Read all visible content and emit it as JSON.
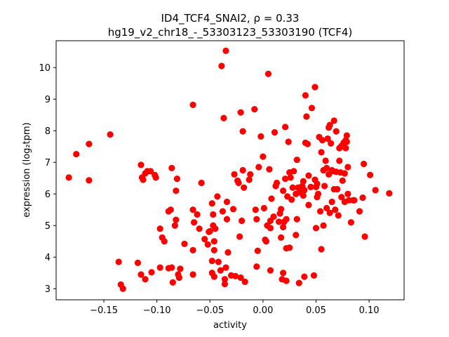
{
  "chart_data": {
    "type": "scatter",
    "title_line1": "ID4_TCF4_SNAI2, ρ = 0.33",
    "title_line2": "hg19_v2_chr18_-_53303123_53303190 (TCF4)",
    "xlabel": "activity",
    "ylabel": "expression (log₂tpm)",
    "xlim": [
      -0.195,
      0.133
    ],
    "ylim": [
      2.65,
      10.85
    ],
    "xticks": [
      -0.15,
      -0.1,
      -0.05,
      0.0,
      0.05,
      0.1
    ],
    "xtick_labels": [
      "−0.15",
      "−0.10",
      "−0.05",
      "0.00",
      "0.05",
      "0.10"
    ],
    "yticks": [
      3,
      4,
      5,
      6,
      7,
      8,
      9,
      10
    ],
    "ytick_labels": [
      "3",
      "4",
      "5",
      "6",
      "7",
      "8",
      "9",
      "10"
    ],
    "marker_color": "#ff0000",
    "grid": false,
    "points": [
      [
        -0.183,
        6.52
      ],
      [
        -0.176,
        7.26
      ],
      [
        -0.164,
        7.58
      ],
      [
        -0.164,
        6.43
      ],
      [
        -0.144,
        7.88
      ],
      [
        -0.136,
        3.85
      ],
      [
        -0.134,
        3.13
      ],
      [
        -0.132,
        3.0
      ],
      [
        -0.118,
        3.82
      ],
      [
        -0.115,
        6.92
      ],
      [
        -0.115,
        3.45
      ],
      [
        -0.114,
        6.52
      ],
      [
        -0.113,
        6.45
      ],
      [
        -0.111,
        6.65
      ],
      [
        -0.111,
        3.3
      ],
      [
        -0.109,
        6.72
      ],
      [
        -0.106,
        6.72
      ],
      [
        -0.105,
        3.52
      ],
      [
        -0.102,
        6.6
      ],
      [
        -0.101,
        6.52
      ],
      [
        -0.097,
        4.9
      ],
      [
        -0.097,
        3.67
      ],
      [
        -0.095,
        4.62
      ],
      [
        -0.093,
        4.5
      ],
      [
        -0.089,
        5.45
      ],
      [
        -0.089,
        3.65
      ],
      [
        -0.087,
        5.5
      ],
      [
        -0.086,
        3.67
      ],
      [
        -0.086,
        6.82
      ],
      [
        -0.085,
        3.2
      ],
      [
        -0.083,
        5.0
      ],
      [
        -0.082,
        5.18
      ],
      [
        -0.082,
        6.1
      ],
      [
        -0.081,
        6.48
      ],
      [
        -0.08,
        3.45
      ],
      [
        -0.079,
        3.35
      ],
      [
        -0.078,
        3.63
      ],
      [
        -0.074,
        4.42
      ],
      [
        -0.066,
        8.82
      ],
      [
        -0.066,
        5.5
      ],
      [
        -0.066,
        4.22
      ],
      [
        -0.066,
        3.45
      ],
      [
        -0.065,
        5.1
      ],
      [
        -0.062,
        5.35
      ],
      [
        -0.06,
        4.9
      ],
      [
        -0.058,
        6.35
      ],
      [
        -0.055,
        4.57
      ],
      [
        -0.052,
        4.4
      ],
      [
        -0.051,
        4.8
      ],
      [
        -0.05,
        4.82
      ],
      [
        -0.048,
        5.7
      ],
      [
        -0.048,
        3.88
      ],
      [
        -0.048,
        3.5
      ],
      [
        -0.047,
        5.35
      ],
      [
        -0.047,
        5.0
      ],
      [
        -0.046,
        4.5
      ],
      [
        -0.046,
        4.22
      ],
      [
        -0.046,
        3.38
      ],
      [
        -0.045,
        4.9
      ],
      [
        -0.043,
        5.92
      ],
      [
        -0.042,
        3.85
      ],
      [
        -0.04,
        3.58
      ],
      [
        -0.039,
        10.05
      ],
      [
        -0.038,
        5.45
      ],
      [
        -0.037,
        8.4
      ],
      [
        -0.036,
        3.3
      ],
      [
        -0.036,
        3.15
      ],
      [
        -0.035,
        10.53
      ],
      [
        -0.035,
        3.67
      ],
      [
        -0.034,
        5.75
      ],
      [
        -0.034,
        5.2
      ],
      [
        -0.033,
        4.15
      ],
      [
        -0.03,
        3.42
      ],
      [
        -0.028,
        5.52
      ],
      [
        -0.027,
        6.62
      ],
      [
        -0.026,
        3.4
      ],
      [
        -0.024,
        6.42
      ],
      [
        -0.023,
        6.35
      ],
      [
        -0.022,
        4.65
      ],
      [
        -0.021,
        8.58
      ],
      [
        -0.021,
        3.35
      ],
      [
        -0.02,
        5.15
      ],
      [
        -0.019,
        7.98
      ],
      [
        -0.019,
        6.75
      ],
      [
        -0.018,
        6.2
      ],
      [
        -0.017,
        3.22
      ],
      [
        -0.013,
        6.45
      ],
      [
        -0.012,
        6.62
      ],
      [
        -0.008,
        8.68
      ],
      [
        -0.007,
        5.5
      ],
      [
        -0.006,
        5.2
      ],
      [
        -0.006,
        3.7
      ],
      [
        -0.005,
        4.2
      ],
      [
        -0.004,
        6.85
      ],
      [
        -0.002,
        7.82
      ],
      [
        0.0,
        7.18
      ],
      [
        0.001,
        5.55
      ],
      [
        0.002,
        4.55
      ],
      [
        0.003,
        4.5
      ],
      [
        0.004,
        5.0
      ],
      [
        0.005,
        9.8
      ],
      [
        0.006,
        6.78
      ],
      [
        0.007,
        5.15
      ],
      [
        0.007,
        4.92
      ],
      [
        0.007,
        3.58
      ],
      [
        0.008,
        5.85
      ],
      [
        0.01,
        5.28
      ],
      [
        0.011,
        7.95
      ],
      [
        0.012,
        6.25
      ],
      [
        0.013,
        6.35
      ],
      [
        0.015,
        5.12
      ],
      [
        0.016,
        5.38
      ],
      [
        0.017,
        5.52
      ],
      [
        0.017,
        4.62
      ],
      [
        0.018,
        3.3
      ],
      [
        0.019,
        3.5
      ],
      [
        0.019,
        6.1
      ],
      [
        0.019,
        4.95
      ],
      [
        0.02,
        5.12
      ],
      [
        0.021,
        8.12
      ],
      [
        0.021,
        6.48
      ],
      [
        0.022,
        4.28
      ],
      [
        0.022,
        3.25
      ],
      [
        0.022,
        5.2
      ],
      [
        0.023,
        5.92
      ],
      [
        0.024,
        7.65
      ],
      [
        0.025,
        6.68
      ],
      [
        0.025,
        4.3
      ],
      [
        0.026,
        6.52
      ],
      [
        0.027,
        5.82
      ],
      [
        0.028,
        6.2
      ],
      [
        0.029,
        6.72
      ],
      [
        0.031,
        6.0
      ],
      [
        0.031,
        4.7
      ],
      [
        0.032,
        7.08
      ],
      [
        0.032,
        5.2
      ],
      [
        0.033,
        6.2
      ],
      [
        0.034,
        3.18
      ],
      [
        0.035,
        6.05
      ],
      [
        0.036,
        6.1
      ],
      [
        0.037,
        6.25
      ],
      [
        0.038,
        6.4
      ],
      [
        0.038,
        5.95
      ],
      [
        0.039,
        3.38
      ],
      [
        0.039,
        6.12
      ],
      [
        0.04,
        9.12
      ],
      [
        0.04,
        7.62
      ],
      [
        0.041,
        8.45
      ],
      [
        0.042,
        7.58
      ],
      [
        0.043,
        6.58
      ],
      [
        0.043,
        5.65
      ],
      [
        0.045,
        6.22
      ],
      [
        0.046,
        8.72
      ],
      [
        0.048,
        3.42
      ],
      [
        0.049,
        9.38
      ],
      [
        0.049,
        6.45
      ],
      [
        0.05,
        4.92
      ],
      [
        0.05,
        6.22
      ],
      [
        0.051,
        6.32
      ],
      [
        0.051,
        5.9
      ],
      [
        0.052,
        6.0
      ],
      [
        0.053,
        7.8
      ],
      [
        0.054,
        5.45
      ],
      [
        0.055,
        4.25
      ],
      [
        0.055,
        7.32
      ],
      [
        0.056,
        7.7
      ],
      [
        0.057,
        6.75
      ],
      [
        0.057,
        5.0
      ],
      [
        0.058,
        6.25
      ],
      [
        0.059,
        7.05
      ],
      [
        0.06,
        5.55
      ],
      [
        0.06,
        6.82
      ],
      [
        0.061,
        7.75
      ],
      [
        0.062,
        8.1
      ],
      [
        0.062,
        6.62
      ],
      [
        0.063,
        8.18
      ],
      [
        0.063,
        5.4
      ],
      [
        0.064,
        7.6
      ],
      [
        0.065,
        6.75
      ],
      [
        0.065,
        5.75
      ],
      [
        0.066,
        6.72
      ],
      [
        0.067,
        8.32
      ],
      [
        0.067,
        6.15
      ],
      [
        0.068,
        5.5
      ],
      [
        0.069,
        7.98
      ],
      [
        0.069,
        6.7
      ],
      [
        0.07,
        6.15
      ],
      [
        0.071,
        5.32
      ],
      [
        0.072,
        7.45
      ],
      [
        0.072,
        7.05
      ],
      [
        0.073,
        6.68
      ],
      [
        0.074,
        5.9
      ],
      [
        0.074,
        7.52
      ],
      [
        0.075,
        6.42
      ],
      [
        0.076,
        7.62
      ],
      [
        0.077,
        6.65
      ],
      [
        0.077,
        5.75
      ],
      [
        0.078,
        7.7
      ],
      [
        0.078,
        7.45
      ],
      [
        0.079,
        7.85
      ],
      [
        0.079,
        7.65
      ],
      [
        0.08,
        6.85
      ],
      [
        0.08,
        6.0
      ],
      [
        0.081,
        5.8
      ],
      [
        0.083,
        5.1
      ],
      [
        0.085,
        5.8
      ],
      [
        0.086,
        5.8
      ],
      [
        0.091,
        5.45
      ],
      [
        0.094,
        5.88
      ],
      [
        0.095,
        6.95
      ],
      [
        0.096,
        4.65
      ],
      [
        0.101,
        6.6
      ],
      [
        0.106,
        6.12
      ],
      [
        0.119,
        6.02
      ]
    ]
  }
}
